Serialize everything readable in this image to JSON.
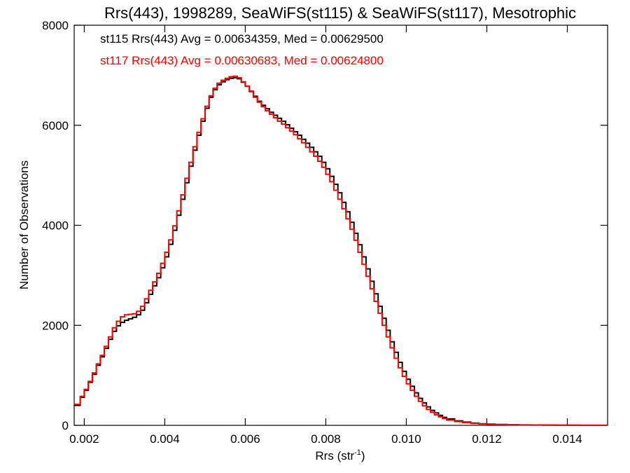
{
  "chart_data": {
    "type": "line",
    "title": "Rrs(443), 1998289, SeaWiFS(st115) & SeaWiFS(st117), Mesotrophic",
    "xlabel": "Rrs (str",
    "xlabel_sup": "-1",
    "xlabel_tail": ")",
    "ylabel": "Number of Observations",
    "xlim": [
      0.00175,
      0.015
    ],
    "ylim": [
      0,
      8000
    ],
    "xticks": [
      0.002,
      0.004,
      0.006,
      0.008,
      0.01,
      0.012,
      0.014
    ],
    "xtick_labels": [
      "0.002",
      "0.004",
      "0.006",
      "0.008",
      "0.010",
      "0.012",
      "0.014"
    ],
    "yticks": [
      0,
      2000,
      4000,
      6000,
      8000
    ],
    "ytick_labels": [
      "0",
      "2000",
      "4000",
      "6000",
      "8000"
    ],
    "grid": false,
    "legend_position": "top-left",
    "annotations": [
      {
        "text": "st115 Rrs(443) Avg = 0.00634359, Med = 0.00629500",
        "color": "#000000"
      },
      {
        "text": "st117 Rrs(443) Avg = 0.00630683, Med = 0.00624800",
        "color": "#ff0000"
      }
    ],
    "series": [
      {
        "color": "#000000",
        "x": [
          0.00175,
          0.0019,
          0.002,
          0.0021,
          0.0022,
          0.0023,
          0.0024,
          0.0025,
          0.0026,
          0.0027,
          0.0028,
          0.0029,
          0.003,
          0.0031,
          0.0032,
          0.0033,
          0.0034,
          0.0035,
          0.0036,
          0.0037,
          0.0038,
          0.0039,
          0.004,
          0.0041,
          0.0042,
          0.0043,
          0.0044,
          0.0045,
          0.0046,
          0.0047,
          0.0048,
          0.0049,
          0.005,
          0.0051,
          0.0052,
          0.0053,
          0.0054,
          0.0055,
          0.0056,
          0.0057,
          0.0058,
          0.0059,
          0.006,
          0.0061,
          0.0062,
          0.0063,
          0.0064,
          0.0065,
          0.0066,
          0.0067,
          0.0068,
          0.0069,
          0.007,
          0.0071,
          0.0072,
          0.0073,
          0.0074,
          0.0075,
          0.0076,
          0.0077,
          0.0078,
          0.0079,
          0.008,
          0.0081,
          0.0082,
          0.0083,
          0.0084,
          0.0085,
          0.0086,
          0.0087,
          0.0088,
          0.0089,
          0.009,
          0.0091,
          0.0092,
          0.0093,
          0.0094,
          0.0095,
          0.0096,
          0.0097,
          0.0098,
          0.0099,
          0.01,
          0.0101,
          0.0102,
          0.0103,
          0.0104,
          0.0105,
          0.0106,
          0.0107,
          0.0108,
          0.0109,
          0.011,
          0.0112,
          0.0114,
          0.0116,
          0.0118,
          0.012,
          0.0122,
          0.0125,
          0.0128,
          0.0131,
          0.0134,
          0.0137,
          0.014,
          0.0143,
          0.0146,
          0.015
        ],
        "y": [
          400,
          560,
          700,
          860,
          1020,
          1200,
          1370,
          1540,
          1720,
          1880,
          1990,
          2060,
          2100,
          2130,
          2160,
          2210,
          2300,
          2450,
          2620,
          2790,
          2950,
          3150,
          3370,
          3620,
          3900,
          4200,
          4520,
          4850,
          5180,
          5500,
          5800,
          6080,
          6340,
          6560,
          6710,
          6810,
          6870,
          6910,
          6940,
          6950,
          6930,
          6860,
          6780,
          6680,
          6580,
          6480,
          6400,
          6330,
          6260,
          6200,
          6140,
          6080,
          6010,
          5940,
          5870,
          5800,
          5720,
          5640,
          5560,
          5470,
          5380,
          5260,
          5130,
          4980,
          4820,
          4650,
          4460,
          4270,
          4060,
          3840,
          3610,
          3370,
          3130,
          2880,
          2630,
          2380,
          2140,
          1900,
          1670,
          1460,
          1260,
          1080,
          920,
          780,
          650,
          540,
          450,
          370,
          300,
          250,
          200,
          160,
          130,
          90,
          65,
          45,
          32,
          24,
          18,
          12,
          9,
          7,
          5,
          4,
          3,
          2,
          2,
          1
        ]
      },
      {
        "color": "#ff0000",
        "x": [
          0.00175,
          0.0019,
          0.002,
          0.0021,
          0.0022,
          0.0023,
          0.0024,
          0.0025,
          0.0026,
          0.0027,
          0.0028,
          0.0029,
          0.003,
          0.0031,
          0.0032,
          0.0033,
          0.0034,
          0.0035,
          0.0036,
          0.0037,
          0.0038,
          0.0039,
          0.004,
          0.0041,
          0.0042,
          0.0043,
          0.0044,
          0.0045,
          0.0046,
          0.0047,
          0.0048,
          0.0049,
          0.005,
          0.0051,
          0.0052,
          0.0053,
          0.0054,
          0.0055,
          0.0056,
          0.0057,
          0.0058,
          0.0059,
          0.006,
          0.0061,
          0.0062,
          0.0063,
          0.0064,
          0.0065,
          0.0066,
          0.0067,
          0.0068,
          0.0069,
          0.007,
          0.0071,
          0.0072,
          0.0073,
          0.0074,
          0.0075,
          0.0076,
          0.0077,
          0.0078,
          0.0079,
          0.008,
          0.0081,
          0.0082,
          0.0083,
          0.0084,
          0.0085,
          0.0086,
          0.0087,
          0.0088,
          0.0089,
          0.009,
          0.0091,
          0.0092,
          0.0093,
          0.0094,
          0.0095,
          0.0096,
          0.0097,
          0.0098,
          0.0099,
          0.01,
          0.0101,
          0.0102,
          0.0103,
          0.0104,
          0.0105,
          0.0106,
          0.0107,
          0.0108,
          0.0109,
          0.011,
          0.0112,
          0.0114,
          0.0116,
          0.0118,
          0.012,
          0.0122,
          0.0125,
          0.0128,
          0.0131,
          0.0134,
          0.0137,
          0.014,
          0.0143,
          0.0146,
          0.015
        ],
        "y": [
          420,
          580,
          720,
          880,
          1050,
          1230,
          1400,
          1580,
          1770,
          1950,
          2080,
          2170,
          2210,
          2220,
          2230,
          2280,
          2380,
          2530,
          2700,
          2870,
          3040,
          3240,
          3460,
          3710,
          3990,
          4290,
          4610,
          4940,
          5260,
          5570,
          5860,
          6130,
          6380,
          6590,
          6740,
          6840,
          6900,
          6940,
          6970,
          6980,
          6950,
          6870,
          6780,
          6670,
          6560,
          6460,
          6370,
          6290,
          6220,
          6150,
          6080,
          6020,
          5950,
          5880,
          5810,
          5730,
          5650,
          5560,
          5470,
          5380,
          5280,
          5160,
          5020,
          4870,
          4700,
          4520,
          4330,
          4130,
          3920,
          3700,
          3460,
          3220,
          2980,
          2730,
          2480,
          2240,
          2000,
          1770,
          1550,
          1340,
          1150,
          980,
          830,
          700,
          580,
          480,
          390,
          320,
          260,
          210,
          170,
          135,
          105,
          75,
          55,
          38,
          28,
          20,
          15,
          10,
          7,
          5,
          4,
          3,
          2,
          2,
          1,
          1
        ]
      }
    ]
  }
}
